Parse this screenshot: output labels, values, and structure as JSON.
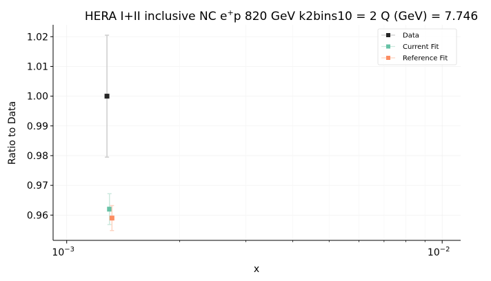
{
  "chart_data": {
    "type": "scatter",
    "title": "HERA I+II inclusive NC e",
    "title_sup": "+",
    "title_rest": "p 820 GeV k2bins10 = 2 Q (GeV) = 7.746",
    "xlabel": "x",
    "ylabel": "Ratio to Data",
    "xscale": "log",
    "xlim": [
      0.00092,
      0.0112
    ],
    "ylim": [
      0.9515,
      1.024
    ],
    "x_ticks": [
      {
        "value": 0.001,
        "base": "10",
        "exp": "−3"
      },
      {
        "value": 0.01,
        "base": "10",
        "exp": "−2"
      }
    ],
    "y_ticks": [
      0.96,
      0.97,
      0.98,
      0.99,
      1.0,
      1.01,
      1.02
    ],
    "y_tick_labels": [
      "0.96",
      "0.97",
      "0.98",
      "0.99",
      "1.00",
      "1.01",
      "1.02"
    ],
    "grid": true,
    "legend_position": "top-right",
    "series": [
      {
        "name": "Data",
        "color": "#262626",
        "err_color": "#cccccc",
        "points": [
          {
            "x": 0.00128,
            "y": 1.0,
            "err": 0.0205
          }
        ]
      },
      {
        "name": "Current Fit",
        "color": "#66c2a5",
        "err_color": "#cde9df",
        "points": [
          {
            "x": 0.0013,
            "y": 0.962,
            "err": 0.0052
          }
        ]
      },
      {
        "name": "Reference Fit",
        "color": "#fc8d62",
        "err_color": "#fdd3c1",
        "points": [
          {
            "x": 0.00132,
            "y": 0.959,
            "err": 0.0042
          }
        ]
      }
    ]
  }
}
